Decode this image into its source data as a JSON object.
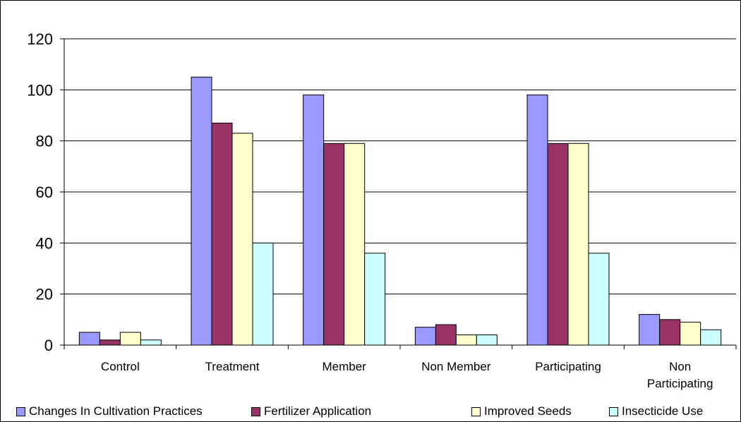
{
  "chart_data": {
    "type": "bar",
    "title": "",
    "xlabel": "",
    "ylabel": "",
    "ylim": [
      0,
      120
    ],
    "yticks": [
      0,
      20,
      40,
      60,
      80,
      100,
      120
    ],
    "grid": true,
    "legend_position": "bottom",
    "categories": [
      [
        "Control"
      ],
      [
        "Treatment"
      ],
      [
        "Member"
      ],
      [
        "Non Member"
      ],
      [
        "Participating"
      ],
      [
        "Non",
        "Participating"
      ]
    ],
    "series": [
      {
        "name": "Changes In Cultivation Practices",
        "color": "#9999ff",
        "values": [
          5,
          105,
          98,
          7,
          98,
          12
        ]
      },
      {
        "name": "Fertilizer Application",
        "color": "#993366",
        "values": [
          2,
          87,
          79,
          8,
          79,
          10
        ]
      },
      {
        "name": "Improved Seeds",
        "color": "#ffffcc",
        "values": [
          5,
          83,
          79,
          4,
          79,
          9
        ]
      },
      {
        "name": "Insecticide Use",
        "color": "#ccffff",
        "values": [
          2,
          40,
          36,
          4,
          36,
          6
        ]
      }
    ]
  }
}
